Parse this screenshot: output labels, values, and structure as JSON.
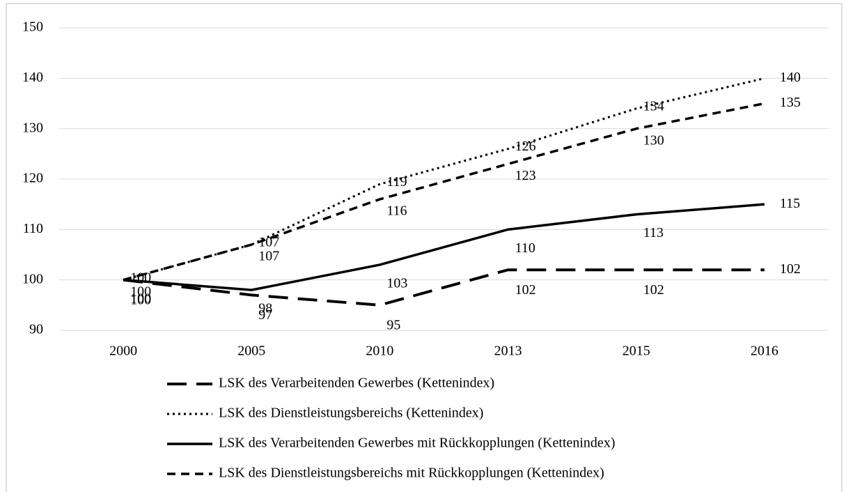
{
  "chart_data": {
    "type": "line",
    "categories": [
      "2000",
      "2005",
      "2010",
      "2013",
      "2015",
      "2016"
    ],
    "series": [
      {
        "name": "LSK des Verarbeitenden Gewerbes (Kettenindex)",
        "color": "#000000",
        "values": [
          100,
          97,
          95,
          102,
          102,
          102
        ]
      },
      {
        "name": "LSK des Dienstleistungsbereichs (Kettenindex)",
        "color": "#000000",
        "values": [
          100,
          107,
          119,
          126,
          134,
          140
        ]
      },
      {
        "name": "LSK des Verarbeitenden Gewerbes mit Rückkopplungen (Kettenindex)",
        "color": "#000000",
        "values": [
          100,
          98,
          103,
          110,
          113,
          115
        ]
      },
      {
        "name": "LSK des Dienstleistungsbereichs mit Rückkopplungen (Kettenindex)",
        "color": "#000000",
        "values": [
          100,
          107,
          116,
          123,
          130,
          135
        ]
      }
    ],
    "ylim": [
      90,
      150
    ],
    "yticks": [
      90,
      100,
      110,
      120,
      130,
      140,
      150
    ],
    "grid": true,
    "legend": "bottom"
  }
}
